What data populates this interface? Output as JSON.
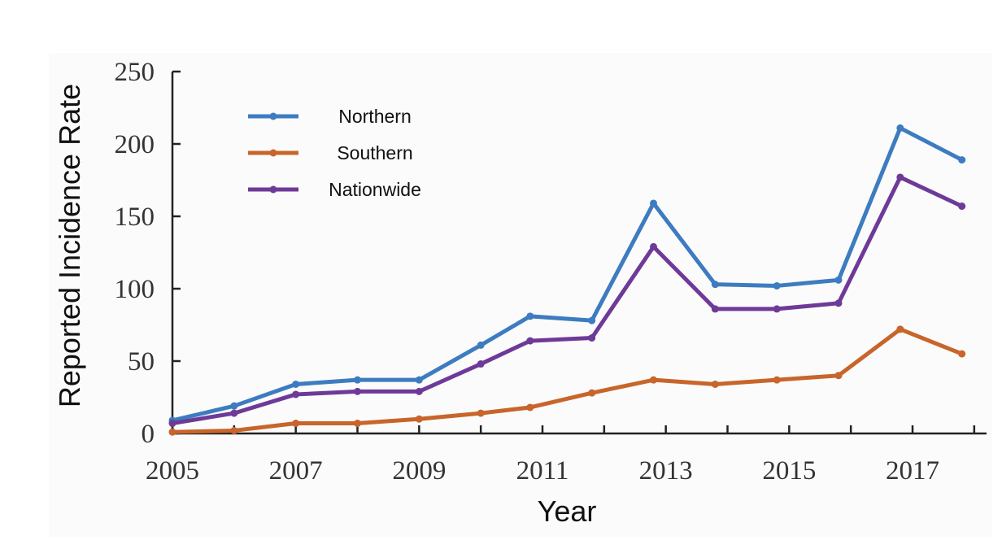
{
  "chart_data": {
    "type": "line",
    "title": "",
    "xlabel": "Year",
    "ylabel": "Reported Incidence Rate",
    "x": [
      2005,
      2006,
      2007,
      2008,
      2009,
      2010,
      2011,
      2012,
      2013,
      2014,
      2015,
      2016,
      2017,
      2018
    ],
    "xticks": [
      2005,
      2007,
      2009,
      2011,
      2013,
      2015,
      2017
    ],
    "xlim": [
      2005,
      2018.2
    ],
    "ylim": [
      0,
      250
    ],
    "yticks": [
      0,
      50,
      100,
      150,
      200,
      250
    ],
    "legend_position": "top-left",
    "grid": false,
    "series": [
      {
        "name": "Northern",
        "color": "#3d7cc0",
        "values": [
          9,
          19,
          34,
          37,
          37,
          61,
          81,
          78,
          159,
          103,
          102,
          106,
          211,
          189
        ]
      },
      {
        "name": "Southern",
        "color": "#c8652a",
        "values": [
          1,
          2,
          7,
          7,
          10,
          14,
          18,
          28,
          37,
          34,
          37,
          40,
          72,
          55
        ]
      },
      {
        "name": "Nationwide",
        "color": "#6e3a98",
        "values": [
          7,
          14,
          27,
          29,
          29,
          48,
          64,
          66,
          129,
          86,
          86,
          90,
          177,
          157
        ]
      }
    ]
  }
}
